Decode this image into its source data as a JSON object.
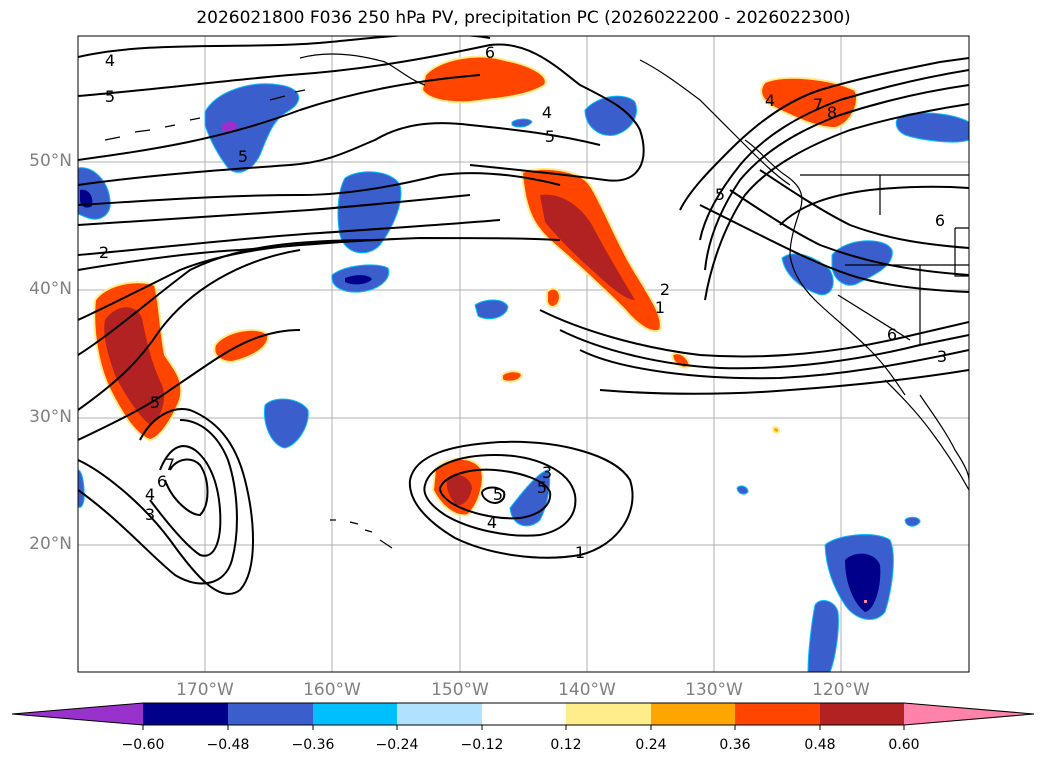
{
  "title": "2026021800 F036 250 hPa PV, precipitation PC (2026022200 - 2026022300)",
  "latitude_labels": [
    "50°N",
    "40°N",
    "30°N",
    "20°N"
  ],
  "longitude_labels": [
    "170°W",
    "160°W",
    "150°W",
    "140°W",
    "130°W",
    "120°W"
  ],
  "contour_labels": [
    "6",
    "4",
    "5",
    "4",
    "5",
    "5",
    "2",
    "5",
    "4",
    "3",
    "7",
    "6",
    "5",
    "4",
    "3",
    "5",
    "1",
    "2",
    "1",
    "4",
    "7",
    "8",
    "5",
    "6",
    "6",
    "3"
  ],
  "colorbar": {
    "ticks": [
      "−0.60",
      "−0.48",
      "−0.36",
      "−0.24",
      "−0.12",
      "0.12",
      "0.24",
      "0.36",
      "0.48",
      "0.60"
    ],
    "colors": [
      "#9932cc",
      "#00008b",
      "#3a5fcd",
      "#00bfff",
      "#b0e2ff",
      "#ffffff",
      "#ffec8b",
      "#ffa500",
      "#ff4500",
      "#b22222",
      "#ff82ab"
    ]
  }
}
